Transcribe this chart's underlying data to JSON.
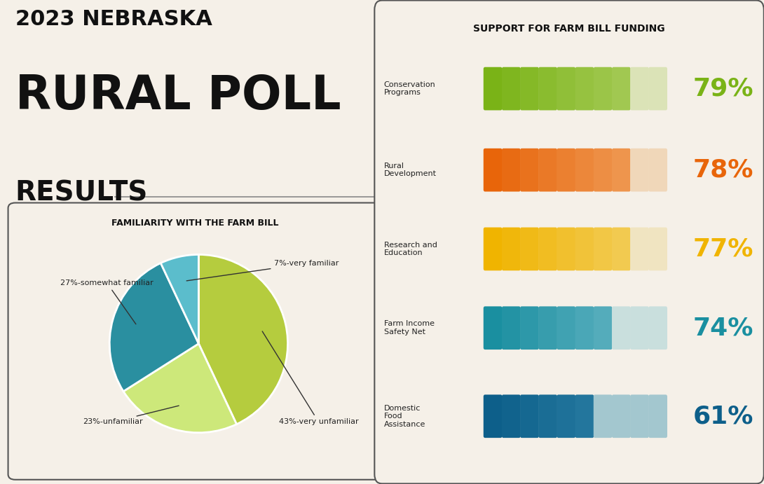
{
  "bg_color": "#f5f0e8",
  "title_line1": "2023 NEBRASKA",
  "title_line2": "RURAL POLL",
  "title_line3": "RESULTS",
  "pie_title": "FAMILIARITY WITH THE FARM BILL",
  "pie_slices": [
    43,
    23,
    27,
    7
  ],
  "pie_labels": [
    "43%-very unfamiliar",
    "23%-unfamiliar",
    "27%-somewhat familiar",
    "7%-very familiar"
  ],
  "pie_colors": [
    "#b5cc3e",
    "#cde87a",
    "#2a8fa0",
    "#5bbdcc"
  ],
  "right_title": "SUPPORT FOR FARM BILL FUNDING",
  "categories": [
    "Conservation\nPrograms",
    "Rural\nDevelopment",
    "Research and\nEducation",
    "Farm Income\nSafety Net",
    "Domestic\nFood\nAssistance"
  ],
  "percentages": [
    79,
    78,
    77,
    74,
    61
  ],
  "pct_labels": [
    "79%",
    "78%",
    "77%",
    "74%",
    "61%"
  ],
  "bar_colors_dark": [
    "#7ab317",
    "#e8650a",
    "#f0b400",
    "#1a8fa0",
    "#0d5f8a"
  ],
  "bar_colors_light": [
    "#c8de8a",
    "#f5c490",
    "#f5e0a0",
    "#a0d4e0",
    "#4aa0c0"
  ],
  "pct_colors": [
    "#7ab317",
    "#e8650a",
    "#f0b400",
    "#1a8fa0",
    "#0d5f8a"
  ],
  "num_bars": 10
}
